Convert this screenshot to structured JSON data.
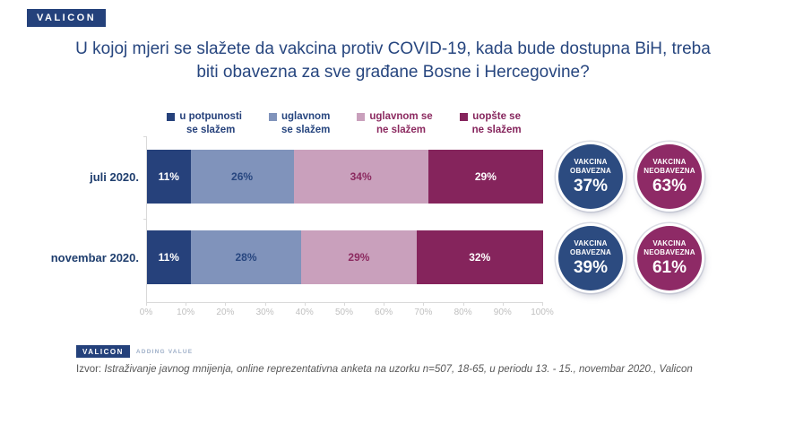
{
  "brand": {
    "logo_text": "VALICON",
    "footer_logo_text": "VALICON",
    "footer_logo_tagline": "ADDING VALUE"
  },
  "title": "U kojoj mjeri se slažete da vakcina protiv COVID-19, kada bude dostupna BiH, treba biti obavezna za sve građane Bosne i Hercegovine?",
  "source": {
    "prefix": "Izvor:",
    "text": "Istraživanje javnog mnijenja, online reprezentativna anketa na uzorku n=507, 18-65, u periodu 13. - 15., novembar 2020., Valicon"
  },
  "colors": {
    "brand_blue": "#24417B",
    "title_blue": "#27467F",
    "axis_gray": "#D9D9D9",
    "tick_label_gray": "#BFBFBF"
  },
  "chart_data": {
    "type": "bar",
    "orientation": "horizontal",
    "stacked": true,
    "title": "U kojoj mjeri se slažete da vakcina protiv COVID-19, kada bude dostupna BiH, treba biti obavezna za sve građane Bosne i Hercegovine?",
    "categories": [
      "juli 2020.",
      "novembar 2020."
    ],
    "series": [
      {
        "name": "u potpunosti se slažem",
        "legend_lines": [
          "u potpunosti",
          "se slažem"
        ],
        "color": "#26417B",
        "label_color": "#FFFFFF",
        "legend_text_color": "#26417B",
        "values": [
          11,
          11
        ]
      },
      {
        "name": "uglavnom se slažem",
        "legend_lines": [
          "uglavnom",
          "se slažem"
        ],
        "color": "#8093BB",
        "label_color": "#27467F",
        "legend_text_color": "#27467F",
        "values": [
          26,
          28
        ]
      },
      {
        "name": "uglavnom se ne slažem",
        "legend_lines": [
          "uglavnom se",
          "ne slažem"
        ],
        "color": "#C9A0BC",
        "label_color": "#8C2A60",
        "legend_text_color": "#8C2A60",
        "values": [
          34,
          29
        ]
      },
      {
        "name": "uopšte se ne slažem",
        "legend_lines": [
          "uopšte se",
          "ne slažem"
        ],
        "color": "#85245C",
        "label_color": "#FFFFFF",
        "legend_text_color": "#85245C",
        "values": [
          29,
          32
        ]
      }
    ],
    "x_ticks": [
      "0%",
      "10%",
      "20%",
      "30%",
      "40%",
      "50%",
      "60%",
      "70%",
      "80%",
      "90%",
      "100%"
    ],
    "xlim": [
      0,
      100
    ],
    "grid": false,
    "legend_position": "top",
    "summary_badges": [
      {
        "category": "juli 2020.",
        "label": "VAKCINA OBAVEZNA",
        "value": "37%",
        "color": "#2C4B80"
      },
      {
        "category": "juli 2020.",
        "label": "VAKCINA NEOBAVEZNA",
        "value": "63%",
        "color": "#8E2A66"
      },
      {
        "category": "novembar 2020.",
        "label": "VAKCINA OBAVEZNA",
        "value": "39%",
        "color": "#2C4B80"
      },
      {
        "category": "novembar 2020.",
        "label": "VAKCINA NEOBAVEZNA",
        "value": "61%",
        "color": "#8E2A66"
      }
    ]
  }
}
